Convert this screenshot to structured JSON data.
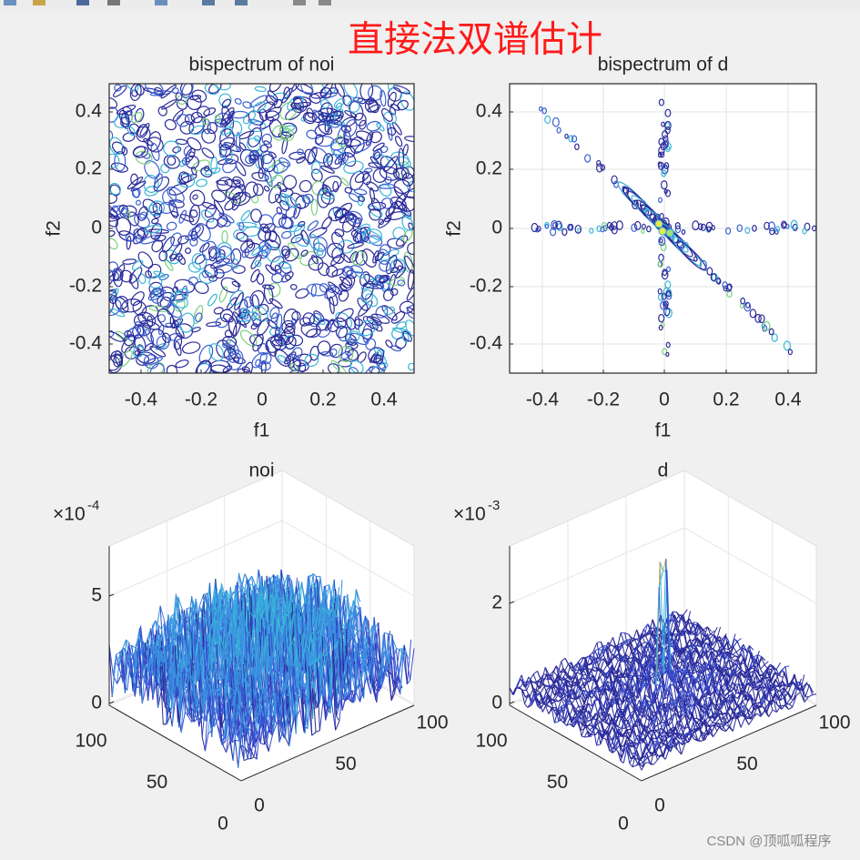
{
  "figure": {
    "title": "直接法双谱估计",
    "plots": [
      {
        "title": "bispectrum of noi",
        "xlabel": "f1",
        "ylabel": "f2",
        "xticks": [
          "-0.4",
          "-0.2",
          "0",
          "0.2",
          "0.4"
        ],
        "yticks": [
          "0.4",
          "0.2",
          "0",
          "-0.2",
          "-0.4"
        ]
      },
      {
        "title": "bispectrum of d",
        "xlabel": "f1",
        "ylabel": "f2",
        "xticks": [
          "-0.4",
          "-0.2",
          "0",
          "0.2",
          "0.4"
        ],
        "yticks": [
          "0.4",
          "0.2",
          "0",
          "-0.2",
          "-0.4"
        ]
      },
      {
        "title": "noi",
        "exponent_base": "×10",
        "exponent_power": "-4",
        "zticks": [
          "5",
          "0"
        ],
        "left_ticks": [
          "100",
          "50",
          "0"
        ],
        "right_ticks": [
          "0",
          "50",
          "100"
        ]
      },
      {
        "title": "d",
        "exponent_base": "×10",
        "exponent_power": "-3",
        "zticks": [
          "2",
          "0"
        ],
        "left_ticks": [
          "100",
          "50",
          "0"
        ],
        "right_ticks": [
          "0",
          "50",
          "100"
        ]
      }
    ]
  },
  "watermark": "CSDN @顶呱呱程序"
}
